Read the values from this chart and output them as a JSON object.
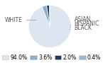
{
  "labels": [
    "WHITE",
    "ASIAN",
    "HISPANIC",
    "BLACK"
  ],
  "values": [
    94.0,
    3.6,
    2.0,
    0.4
  ],
  "colors": [
    "#dce6f1",
    "#8eaec9",
    "#1f3864",
    "#9bb8d3"
  ],
  "legend_colors": [
    "#dce6f1",
    "#8eaec9",
    "#1f3864",
    "#9bb8d3"
  ],
  "legend_labels": [
    "94.0%",
    "3.6%",
    "2.0%",
    "0.4%"
  ],
  "startangle": 90,
  "background_color": "#ffffff"
}
